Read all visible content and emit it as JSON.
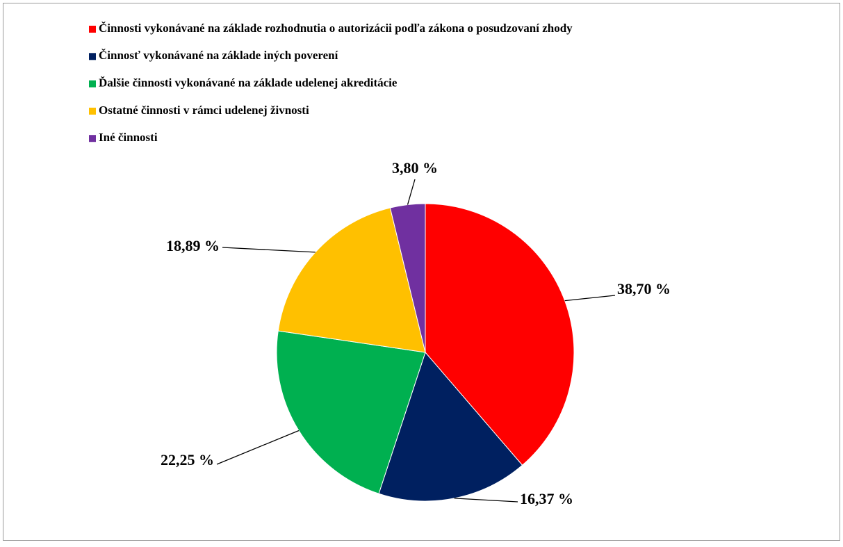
{
  "chart_data": {
    "type": "pie",
    "categories": [
      "Činnosti vykonávané na základe rozhodnutia o autorizácii podľa zákona o posudzovaní zhody",
      "Činnosť vykonávané na základe iných poverení",
      "Ďalšie činnosti vykonávané na základe udelenej akreditácie",
      "Ostatné činnosti v rámci udelenej živnosti",
      "Iné činnosti"
    ],
    "values": [
      38.7,
      16.37,
      22.25,
      18.89,
      3.8
    ],
    "value_labels": [
      "38,70 %",
      "16,37 %",
      "22,25 %",
      "18,89 %",
      "3,80 %"
    ],
    "colors": [
      "#ff0000",
      "#002060",
      "#00b050",
      "#ffc000",
      "#7030a0"
    ],
    "legend": "top"
  }
}
